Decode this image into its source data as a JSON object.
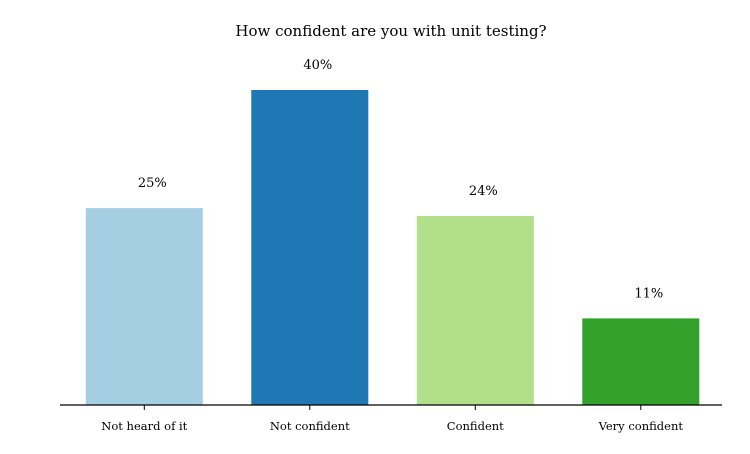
{
  "chart_data": {
    "type": "bar",
    "title": "How confident are you with unit testing?",
    "xlabel": "",
    "ylabel": "",
    "categories": [
      "Not heard of it",
      "Not confident",
      "Confident",
      "Very confident"
    ],
    "values": [
      25,
      40,
      24,
      11
    ],
    "value_labels": [
      "25%",
      "40%",
      "24%",
      "11%"
    ],
    "colors": [
      "#a6cee3",
      "#1f78b4",
      "#b2df8a",
      "#33a02c"
    ],
    "ylim": [
      0,
      40
    ],
    "grid": false,
    "legend": "none",
    "y_axis_visible": false
  }
}
